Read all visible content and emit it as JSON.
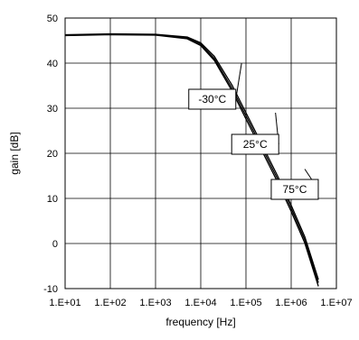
{
  "chart_data": {
    "type": "line",
    "xlabel": "frequency [Hz]",
    "ylabel": "gain [dB]",
    "x_scale": "log",
    "xlim": [
      10,
      10000000
    ],
    "ylim": [
      -10,
      50
    ],
    "x_ticks": [
      10,
      100,
      1000,
      10000,
      100000,
      1000000,
      10000000
    ],
    "x_tick_labels": [
      "1.E+01",
      "1.E+02",
      "1.E+03",
      "1.E+04",
      "1.E+05",
      "1.E+06",
      "1.E+07"
    ],
    "y_ticks": [
      -10,
      0,
      10,
      20,
      30,
      40,
      50
    ],
    "y_tick_labels": [
      "-10",
      "0",
      "10",
      "20",
      "30",
      "40",
      "50"
    ],
    "grid": true,
    "line_color": "#000000",
    "series": [
      {
        "name": "-30°C",
        "x": [
          10,
          100,
          1000,
          5000,
          10000,
          20000,
          50000,
          100000,
          200000,
          500000,
          1000000,
          2000000,
          4000000
        ],
        "y": [
          46.3,
          46.5,
          46.4,
          45.8,
          44.5,
          41.5,
          35.0,
          29.0,
          23.0,
          15.0,
          8.5,
          1.5,
          -8.0
        ]
      },
      {
        "name": "25°C",
        "x": [
          10,
          100,
          1000,
          5000,
          10000,
          20000,
          50000,
          100000,
          200000,
          500000,
          1000000,
          2000000,
          4000000
        ],
        "y": [
          46.2,
          46.4,
          46.3,
          45.6,
          44.2,
          41.0,
          34.3,
          28.3,
          22.3,
          14.3,
          7.8,
          0.8,
          -8.7
        ]
      },
      {
        "name": "75°C",
        "x": [
          10,
          100,
          1000,
          5000,
          10000,
          20000,
          50000,
          100000,
          200000,
          500000,
          1000000,
          2000000,
          4000000
        ],
        "y": [
          46.1,
          46.3,
          46.2,
          45.4,
          43.9,
          40.6,
          33.7,
          27.6,
          21.6,
          13.6,
          7.1,
          0.1,
          -9.5
        ]
      }
    ],
    "annotations": [
      {
        "text": "-30°C",
        "x": 18000,
        "y": 32,
        "target_x": 80000,
        "target_y": 40
      },
      {
        "text": "25°C",
        "x": 160000,
        "y": 22,
        "target_x": 450000,
        "target_y": 29
      },
      {
        "text": "75°C",
        "x": 1200000,
        "y": 12,
        "target_x": 2000000,
        "target_y": 16.5
      }
    ]
  }
}
